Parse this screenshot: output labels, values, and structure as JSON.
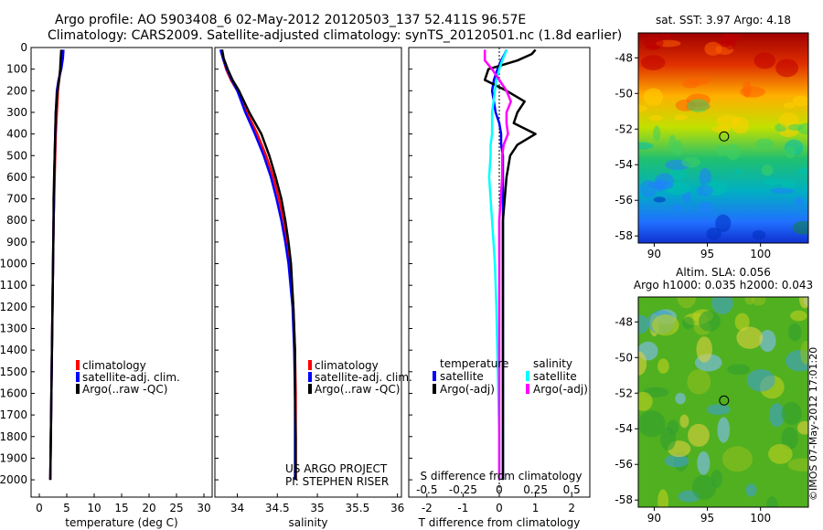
{
  "title": {
    "line1": "Argo profile: AO 5903408_6 02-May-2012 20120503_137 52.411S 96.57E",
    "line2": "Climatology: CARS2009. Satellite-adjusted climatology: synTS_20120501.nc (1.8d earlier)"
  },
  "colors": {
    "climatology": "#ff0000",
    "satellite": "#0000ff",
    "argo": "#000000",
    "sal_satellite": "#00ffff",
    "sal_argo": "#ff00ff"
  },
  "chart_data": [
    {
      "type": "line",
      "name": "temperature",
      "xlabel": "temperature (deg C)",
      "xlim": [
        -1.5,
        31.5
      ],
      "ylim": [
        0,
        2080
      ],
      "xticks": [
        "0",
        "5",
        "10",
        "15",
        "20",
        "25",
        "30"
      ],
      "yticks": [
        "0",
        "100",
        "200",
        "300",
        "400",
        "500",
        "600",
        "700",
        "800",
        "900",
        "1000",
        "1100",
        "1200",
        "1300",
        "1400",
        "1500",
        "1600",
        "1700",
        "1800",
        "1900",
        "2000"
      ],
      "depth": [
        10,
        50,
        100,
        150,
        200,
        300,
        400,
        500,
        600,
        700,
        800,
        1000,
        1200,
        1400,
        1600,
        1800,
        2000
      ],
      "series": [
        {
          "name": "climatology",
          "color": "#ff0000",
          "values": [
            4.2,
            4.1,
            3.9,
            3.6,
            3.4,
            3.2,
            3.0,
            2.9,
            2.8,
            2.7,
            2.6,
            2.5,
            2.4,
            2.3,
            2.2,
            2.1,
            2.0
          ]
        },
        {
          "name": "satellite-adj. clim.",
          "color": "#0000ff",
          "values": [
            4.4,
            4.3,
            4.0,
            3.5,
            3.2,
            3.0,
            2.9,
            2.8,
            2.7,
            2.7,
            2.6,
            2.5,
            2.4,
            2.3,
            2.2,
            2.1,
            2.0
          ]
        },
        {
          "name": "Argo(..raw -QC)",
          "color": "#000000",
          "values": [
            4.0,
            3.9,
            3.8,
            3.6,
            3.3,
            3.0,
            2.9,
            2.8,
            2.7,
            2.6,
            2.6,
            2.5,
            2.4,
            2.3,
            2.2,
            2.1,
            2.0
          ]
        }
      ],
      "legend": [
        "climatology",
        "satellite-adj. clim.",
        "Argo(..raw -QC)"
      ]
    },
    {
      "type": "line",
      "name": "salinity",
      "xlabel": "salinity",
      "xlim": [
        33.72,
        36.05
      ],
      "ylim": [
        0,
        2080
      ],
      "xticks": [
        "34",
        "34.5",
        "35",
        "35.5",
        "36"
      ],
      "depth": [
        10,
        50,
        100,
        150,
        200,
        300,
        400,
        500,
        600,
        700,
        800,
        900,
        1000,
        1200,
        1400,
        1600,
        1800,
        2000
      ],
      "series": [
        {
          "name": "climatology",
          "color": "#ff0000",
          "values": [
            33.8,
            33.82,
            33.86,
            33.92,
            34.0,
            34.12,
            34.25,
            34.36,
            34.45,
            34.52,
            34.58,
            34.62,
            34.66,
            34.7,
            34.72,
            34.73,
            34.73,
            34.73
          ]
        },
        {
          "name": "satellite-adj. clim.",
          "color": "#0000ff",
          "values": [
            33.79,
            33.82,
            33.87,
            33.93,
            34.0,
            34.1,
            34.22,
            34.33,
            34.42,
            34.49,
            34.55,
            34.6,
            34.64,
            34.69,
            34.71,
            34.72,
            34.72,
            34.72
          ]
        },
        {
          "name": "Argo(..raw -QC)",
          "color": "#000000",
          "values": [
            33.81,
            33.83,
            33.88,
            33.94,
            34.02,
            34.15,
            34.3,
            34.4,
            34.48,
            34.55,
            34.6,
            34.64,
            34.67,
            34.7,
            34.72,
            34.72,
            34.73,
            34.73
          ]
        }
      ],
      "legend": [
        "climatology",
        "satellite-adj. clim.",
        "Argo(..raw -QC)"
      ],
      "annotation": [
        "US ARGO PROJECT",
        "PI: STEPHEN RISER"
      ]
    },
    {
      "type": "line",
      "name": "difference",
      "xlabel": "T difference from climatology",
      "xlabel_top": "S difference from climatology",
      "xlim": [
        -2.5,
        2.5
      ],
      "ylim": [
        0,
        2080
      ],
      "xticks": [
        "-2",
        "-1",
        "0",
        "1",
        "2"
      ],
      "xticks_top": [
        "-0.5",
        "-0.25",
        "0",
        "0.25",
        "0.5"
      ],
      "depth": [
        10,
        30,
        60,
        100,
        150,
        200,
        250,
        300,
        350,
        400,
        450,
        500,
        600,
        800,
        1000,
        1200,
        1500,
        1800,
        2000
      ],
      "series": [
        {
          "name": "T satellite",
          "color": "#0000ff",
          "values": [
            0.2,
            0.15,
            0.05,
            -0.05,
            -0.15,
            -0.2,
            -0.15,
            -0.1,
            0.0,
            0.05,
            0.05,
            0.1,
            0.1,
            0.1,
            0.1,
            0.1,
            0.1,
            0.1,
            0.1
          ]
        },
        {
          "name": "T Argo(-adj)",
          "color": "#000000",
          "values": [
            1.0,
            0.9,
            0.5,
            -0.3,
            -0.4,
            0.2,
            0.7,
            0.5,
            0.4,
            1.0,
            0.5,
            0.3,
            0.2,
            0.1,
            0.1,
            0.1,
            0.1,
            0.1,
            0.1
          ]
        },
        {
          "name": "S satellite",
          "color": "#00ffff",
          "values": [
            0.05,
            0.04,
            0.02,
            0.0,
            -0.02,
            -0.03,
            -0.04,
            -0.05,
            -0.05,
            -0.05,
            -0.06,
            -0.06,
            -0.07,
            -0.05,
            -0.03,
            -0.02,
            -0.01,
            0.0,
            0.0
          ]
        },
        {
          "name": "S Argo(-adj)",
          "color": "#ff00ff",
          "values": [
            -0.1,
            -0.1,
            -0.1,
            -0.05,
            0.0,
            0.05,
            0.08,
            0.05,
            0.05,
            0.06,
            0.03,
            0.02,
            0.02,
            0.0,
            0.0,
            0.0,
            0.0,
            0.0,
            0.0
          ]
        }
      ],
      "legend_temperature": {
        "title": "temperature",
        "items": [
          "satellite",
          "Argo(-adj)"
        ]
      },
      "legend_salinity": {
        "title": "salinity",
        "items": [
          "satellite",
          "Argo(-adj)"
        ]
      }
    },
    {
      "type": "heatmap",
      "name": "sst-map",
      "title": "sat. SST: 3.97  Argo: 4.18",
      "xticks": [
        "90",
        "95",
        "100"
      ],
      "yticks": [
        "-48",
        "-50",
        "-52",
        "-54",
        "-56",
        "-58"
      ],
      "xlim": [
        88.5,
        104.5
      ],
      "ylim": [
        -58.4,
        -46.6
      ],
      "marker": {
        "lon": 96.57,
        "lat": -52.411
      }
    },
    {
      "type": "heatmap",
      "name": "sla-map",
      "title_line1": "Altim. SLA: 0.056",
      "title_line2": "Argo h1000: 0.035 h2000: 0.043",
      "xticks": [
        "90",
        "95",
        "100"
      ],
      "yticks": [
        "-48",
        "-50",
        "-52",
        "-54",
        "-56",
        "-58"
      ],
      "xlim": [
        88.5,
        104.5
      ],
      "ylim": [
        -58.4,
        -46.6
      ],
      "marker": {
        "lon": 96.57,
        "lat": -52.411
      }
    }
  ],
  "timestamp": "©IMOS 07-May-2012 17:01:20"
}
